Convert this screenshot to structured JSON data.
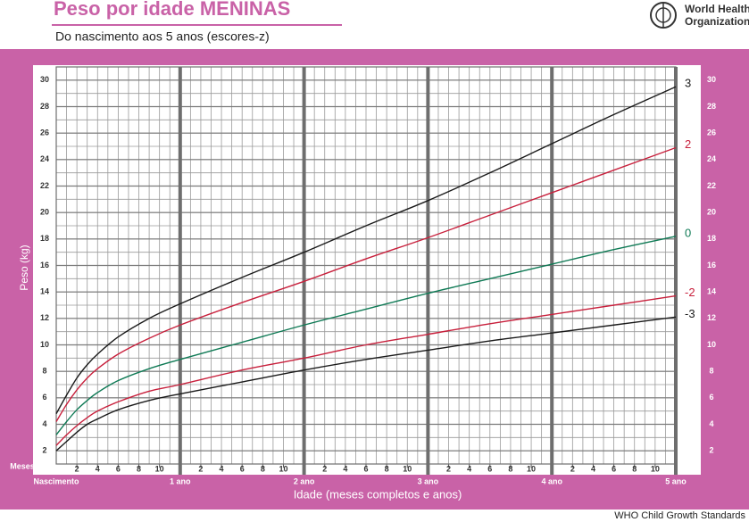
{
  "chart_data": {
    "type": "line",
    "title": "Peso por idade MENINAS",
    "subtitle": "Do nascimento aos 5 anos (escores-z)",
    "organization": [
      "World Health",
      "Organization"
    ],
    "footer": "WHO Child Growth Standards",
    "y_label": "Peso (kg)",
    "x_label": "Idade (meses completos e anos)",
    "x_unit_label": "Meses",
    "xlim": [
      0,
      60
    ],
    "ylim": [
      1,
      31
    ],
    "yticks": [
      2,
      4,
      6,
      8,
      10,
      12,
      14,
      16,
      18,
      20,
      22,
      24,
      26,
      28,
      30
    ],
    "xticks": [
      {
        "value": 2,
        "label": "2"
      },
      {
        "value": 4,
        "label": "4"
      },
      {
        "value": 6,
        "label": "6"
      },
      {
        "value": 8,
        "label": "8"
      },
      {
        "value": 10,
        "label": "10"
      },
      {
        "value": 14,
        "label": "2"
      },
      {
        "value": 16,
        "label": "4"
      },
      {
        "value": 18,
        "label": "6"
      },
      {
        "value": 20,
        "label": "8"
      },
      {
        "value": 22,
        "label": "10"
      },
      {
        "value": 26,
        "label": "2"
      },
      {
        "value": 28,
        "label": "4"
      },
      {
        "value": 30,
        "label": "6"
      },
      {
        "value": 32,
        "label": "8"
      },
      {
        "value": 34,
        "label": "10"
      },
      {
        "value": 38,
        "label": "2"
      },
      {
        "value": 40,
        "label": "4"
      },
      {
        "value": 42,
        "label": "6"
      },
      {
        "value": 44,
        "label": "8"
      },
      {
        "value": 46,
        "label": "10"
      },
      {
        "value": 50,
        "label": "2"
      },
      {
        "value": 52,
        "label": "4"
      },
      {
        "value": 54,
        "label": "6"
      },
      {
        "value": 56,
        "label": "8"
      },
      {
        "value": 58,
        "label": "10"
      }
    ],
    "xticks_year": [
      {
        "value": 0,
        "label": "Nascimento"
      },
      {
        "value": 12,
        "label": "1 ano"
      },
      {
        "value": 24,
        "label": "2 ano"
      },
      {
        "value": 36,
        "label": "3 ano"
      },
      {
        "value": 48,
        "label": "4 ano"
      },
      {
        "value": 60,
        "label": "5 ano"
      }
    ],
    "x_minor_step": 1,
    "y_minor_step": 1,
    "grid": true,
    "x": [
      0,
      1,
      2,
      3,
      4,
      6,
      9,
      12,
      18,
      24,
      30,
      36,
      42,
      48,
      54,
      60
    ],
    "series": [
      {
        "name": "3",
        "color": "#1a1a1a",
        "values": [
          4.8,
          6.2,
          7.5,
          8.5,
          9.3,
          10.6,
          12.0,
          13.1,
          15.1,
          17.0,
          19.0,
          20.9,
          23.0,
          25.2,
          27.4,
          29.5
        ]
      },
      {
        "name": "2",
        "color": "#c8203c",
        "values": [
          4.2,
          5.5,
          6.6,
          7.5,
          8.2,
          9.3,
          10.5,
          11.5,
          13.2,
          14.8,
          16.5,
          18.1,
          19.8,
          21.5,
          23.2,
          24.9
        ]
      },
      {
        "name": "0",
        "color": "#0f7a55",
        "values": [
          3.2,
          4.2,
          5.1,
          5.8,
          6.4,
          7.3,
          8.2,
          8.9,
          10.2,
          11.5,
          12.7,
          13.9,
          15.0,
          16.1,
          17.2,
          18.2
        ]
      },
      {
        "name": "-2",
        "color": "#c8203c",
        "values": [
          2.4,
          3.2,
          3.9,
          4.5,
          5.0,
          5.7,
          6.5,
          7.0,
          8.1,
          9.0,
          10.0,
          10.8,
          11.6,
          12.3,
          13.0,
          13.7
        ]
      },
      {
        "name": "-3",
        "color": "#1a1a1a",
        "values": [
          2.0,
          2.7,
          3.4,
          4.0,
          4.4,
          5.1,
          5.8,
          6.3,
          7.2,
          8.1,
          8.9,
          9.6,
          10.3,
          10.9,
          11.5,
          12.1
        ]
      }
    ]
  }
}
